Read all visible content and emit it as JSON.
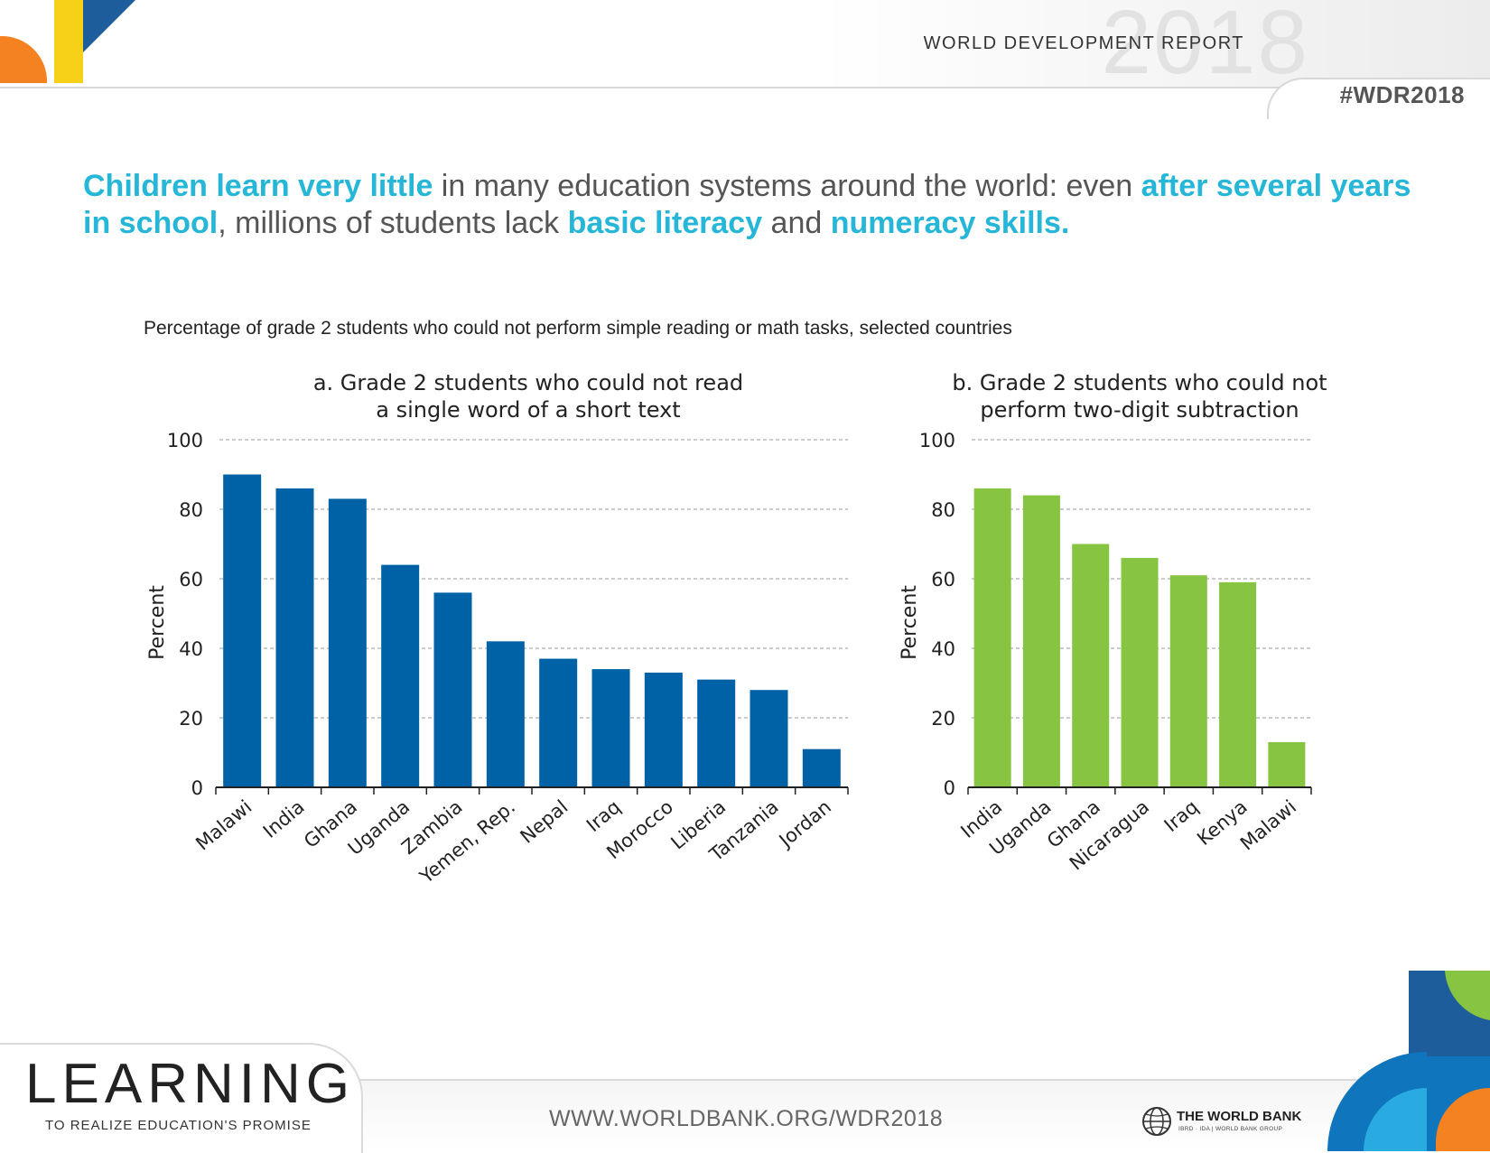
{
  "header": {
    "report_title": "WORLD DEVELOPMENT REPORT",
    "year_watermark": "2018",
    "hashtag": "#WDR2018"
  },
  "headline": {
    "part1_hl": "Children learn very little",
    "part2": " in many education systems around the world: even ",
    "part3_hl": "after several years in school",
    "part4": ", millions of students lack ",
    "part5_hl": "basic literacy",
    "part6": " and ",
    "part7_hl": "numeracy skills."
  },
  "subtitle": "Percentage of grade 2 students who could not perform simple reading or math tasks, selected countries",
  "chart_data": [
    {
      "type": "bar",
      "title_line1": "a. Grade 2 students who could not read",
      "title_line2": "a single word of a short text",
      "ylabel": "Percent",
      "ylim": [
        0,
        100
      ],
      "yticks": [
        0,
        20,
        40,
        60,
        80,
        100
      ],
      "color": "#0062a6",
      "categories": [
        "Malawi",
        "India",
        "Ghana",
        "Uganda",
        "Zambia",
        "Yemen, Rep.",
        "Nepal",
        "Iraq",
        "Morocco",
        "Liberia",
        "Tanzania",
        "Jordan"
      ],
      "values": [
        90,
        86,
        83,
        64,
        56,
        42,
        37,
        34,
        33,
        31,
        28,
        11
      ]
    },
    {
      "type": "bar",
      "title_line1": "b. Grade 2 students who could not",
      "title_line2": "perform two-digit subtraction",
      "ylabel": "Percent",
      "ylim": [
        0,
        100
      ],
      "yticks": [
        0,
        20,
        40,
        60,
        80,
        100
      ],
      "color": "#86c442",
      "categories": [
        "India",
        "Uganda",
        "Ghana",
        "Nicaragua",
        "Iraq",
        "Kenya",
        "Malawi"
      ],
      "values": [
        86,
        84,
        70,
        66,
        61,
        59,
        13
      ]
    }
  ],
  "footer": {
    "brand": "LEARNING",
    "tagline": "TO REALIZE EDUCATION'S PROMISE",
    "website": "WWW.WORLDBANK.ORG/WDR2018",
    "org_name": "THE WORLD BANK",
    "org_sub": "IBRD · IDA | WORLD BANK GROUP"
  },
  "colors": {
    "accent_cyan": "#25b6d8",
    "bar_blue": "#0062a6",
    "bar_green": "#86c442",
    "deco_orange": "#f58220",
    "deco_yellow": "#f7d117",
    "deco_navy": "#1d5d9b"
  }
}
